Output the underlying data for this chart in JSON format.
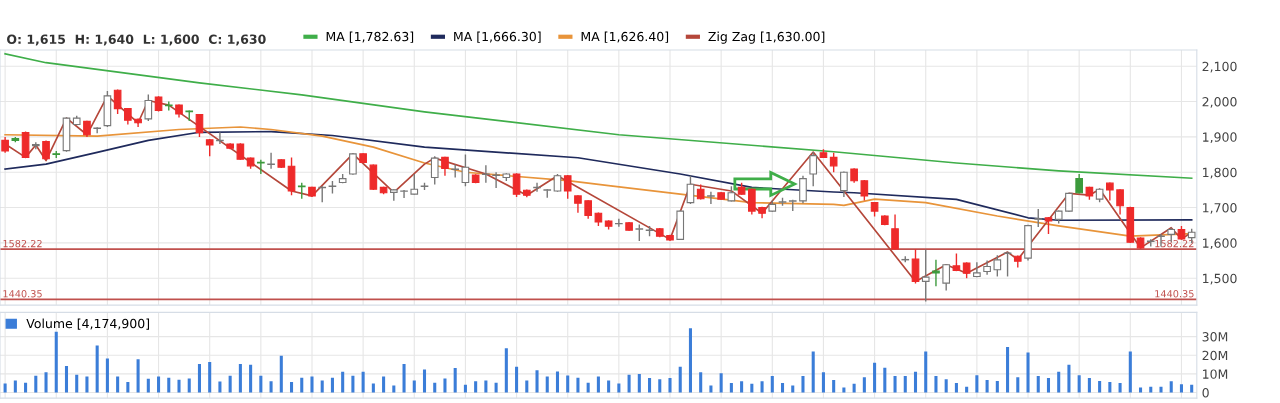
{
  "chart_data": [
    {
      "type": "candlestick",
      "categories": [
        null,
        null,
        null,
        null,
        null,
        null,
        null,
        null,
        null,
        null,
        null,
        null,
        null,
        null,
        null,
        null,
        null,
        null,
        null,
        null,
        null,
        null,
        null,
        null,
        null,
        null,
        null,
        null,
        null,
        null,
        null,
        null,
        null,
        null,
        null,
        null,
        null,
        null,
        null,
        null,
        null,
        null,
        null,
        null,
        null,
        null,
        null,
        null,
        null,
        null,
        null,
        null,
        null,
        null,
        null,
        null,
        null,
        null,
        null,
        null,
        null,
        null,
        null,
        null,
        null,
        null,
        null,
        null,
        null,
        null,
        null,
        null,
        null,
        null,
        null,
        null,
        null,
        null,
        null,
        null,
        null,
        null,
        null,
        null,
        null,
        null,
        null,
        null,
        null,
        null,
        null,
        null,
        null,
        null,
        null,
        null,
        null,
        null,
        null,
        null,
        null,
        null,
        null,
        null,
        null,
        null,
        null,
        null,
        null,
        null,
        null,
        null,
        null,
        null,
        null,
        null,
        null
      ],
      "ohlc": [
        [
          1890,
          1900,
          1855,
          1860
        ],
        [
          1890,
          1900,
          1885,
          1895
        ],
        [
          1912,
          1915,
          1840,
          1842
        ],
        [
          1875,
          1885,
          1865,
          1878
        ],
        [
          1887,
          1890,
          1835,
          1838
        ],
        [
          1850,
          1860,
          1840,
          1852
        ],
        [
          1861,
          1955,
          1858,
          1953
        ],
        [
          1935,
          1960,
          1933,
          1953
        ],
        [
          1944,
          1946,
          1900,
          1906
        ],
        [
          1924,
          1927,
          1910,
          1925
        ],
        [
          1932,
          2030,
          1928,
          2016
        ],
        [
          2032,
          2034,
          1965,
          1980
        ],
        [
          1980,
          1982,
          1935,
          1947
        ],
        [
          1950,
          1952,
          1928,
          1940
        ],
        [
          1951,
          2020,
          1945,
          2003
        ],
        [
          2013,
          2015,
          1972,
          1975
        ],
        [
          1988,
          2000,
          1975,
          1990
        ],
        [
          1990,
          1992,
          1955,
          1965
        ],
        [
          1971,
          1975,
          1945,
          1973
        ],
        [
          1963,
          1965,
          1900,
          1912
        ],
        [
          1892,
          1894,
          1845,
          1877
        ],
        [
          1889,
          1913,
          1880,
          1890
        ],
        [
          1880,
          1882,
          1865,
          1868
        ],
        [
          1880,
          1882,
          1835,
          1837
        ],
        [
          1840,
          1842,
          1810,
          1818
        ],
        [
          1826,
          1835,
          1795,
          1828
        ],
        [
          1822,
          1855,
          1810,
          1823
        ],
        [
          1835,
          1837,
          1812,
          1814
        ],
        [
          1817,
          1842,
          1735,
          1747
        ],
        [
          1759,
          1770,
          1725,
          1761
        ],
        [
          1757,
          1759,
          1730,
          1733
        ],
        [
          1756,
          1760,
          1715,
          1757
        ],
        [
          1760,
          1775,
          1740,
          1761
        ],
        [
          1771,
          1795,
          1769,
          1782
        ],
        [
          1795,
          1854,
          1793,
          1852
        ],
        [
          1852,
          1854,
          1826,
          1828
        ],
        [
          1820,
          1822,
          1750,
          1752
        ],
        [
          1757,
          1759,
          1738,
          1742
        ],
        [
          1743,
          1752,
          1719,
          1750
        ],
        [
          1746,
          1750,
          1727,
          1747
        ],
        [
          1738,
          1795,
          1736,
          1752
        ],
        [
          1760,
          1770,
          1750,
          1761
        ],
        [
          1785,
          1845,
          1765,
          1840
        ],
        [
          1842,
          1844,
          1790,
          1811
        ],
        [
          1808,
          1822,
          1785,
          1809
        ],
        [
          1771,
          1850,
          1760,
          1814
        ],
        [
          1792,
          1794,
          1769,
          1771
        ],
        [
          1794,
          1820,
          1770,
          1795
        ],
        [
          1791,
          1800,
          1755,
          1792
        ],
        [
          1785,
          1797,
          1775,
          1795
        ],
        [
          1795,
          1797,
          1730,
          1738
        ],
        [
          1749,
          1751,
          1729,
          1735
        ],
        [
          1756,
          1770,
          1745,
          1757
        ],
        [
          1749,
          1752,
          1728,
          1750
        ],
        [
          1747,
          1795,
          1745,
          1790
        ],
        [
          1790,
          1792,
          1725,
          1747
        ],
        [
          1733,
          1735,
          1685,
          1712
        ],
        [
          1719,
          1721,
          1668,
          1678
        ],
        [
          1684,
          1686,
          1648,
          1659
        ],
        [
          1662,
          1664,
          1638,
          1647
        ],
        [
          1654,
          1668,
          1646,
          1655
        ],
        [
          1657,
          1659,
          1634,
          1636
        ],
        [
          1639,
          1652,
          1605,
          1640
        ],
        [
          1635,
          1648,
          1619,
          1636
        ],
        [
          1640,
          1642,
          1616,
          1619
        ],
        [
          1621,
          1623,
          1605,
          1608
        ],
        [
          1610,
          1692,
          1608,
          1690
        ],
        [
          1714,
          1790,
          1710,
          1766
        ],
        [
          1752,
          1765,
          1723,
          1725
        ],
        [
          1732,
          1745,
          1710,
          1733
        ],
        [
          1742,
          1744,
          1722,
          1724
        ],
        [
          1719,
          1760,
          1717,
          1742
        ],
        [
          1757,
          1770,
          1736,
          1738
        ],
        [
          1752,
          1754,
          1680,
          1690
        ],
        [
          1700,
          1702,
          1670,
          1684
        ],
        [
          1690,
          1720,
          1688,
          1709
        ],
        [
          1715,
          1728,
          1705,
          1716
        ],
        [
          1718,
          1722,
          1690,
          1719
        ],
        [
          1719,
          1790,
          1712,
          1782
        ],
        [
          1795,
          1857,
          1760,
          1847
        ],
        [
          1855,
          1865,
          1840,
          1842
        ],
        [
          1842,
          1855,
          1800,
          1818
        ],
        [
          1748,
          1802,
          1730,
          1800
        ],
        [
          1809,
          1811,
          1770,
          1776
        ],
        [
          1776,
          1778,
          1720,
          1733
        ],
        [
          1714,
          1716,
          1675,
          1690
        ],
        [
          1676,
          1678,
          1650,
          1652
        ],
        [
          1640,
          1680,
          1581,
          1583
        ],
        [
          1552,
          1562,
          1545,
          1553
        ],
        [
          1554,
          1582,
          1485,
          1491
        ],
        [
          1491,
          1581,
          1434,
          1503
        ],
        [
          1515,
          1552,
          1477,
          1520
        ],
        [
          1486,
          1540,
          1465,
          1538
        ],
        [
          1535,
          1570,
          1520,
          1522
        ],
        [
          1543,
          1545,
          1500,
          1514
        ],
        [
          1505,
          1545,
          1503,
          1515
        ],
        [
          1519,
          1550,
          1510,
          1533
        ],
        [
          1524,
          1565,
          1505,
          1552
        ],
        [
          1570,
          1575,
          1505,
          1571
        ],
        [
          1562,
          1564,
          1530,
          1548
        ],
        [
          1557,
          1651,
          1550,
          1649
        ],
        [
          1667,
          1696,
          1645,
          1668
        ],
        [
          1671,
          1673,
          1625,
          1662
        ],
        [
          1667,
          1692,
          1655,
          1690
        ],
        [
          1690,
          1742,
          1688,
          1740
        ],
        [
          1742,
          1795,
          1740,
          1782
        ],
        [
          1757,
          1759,
          1722,
          1733
        ],
        [
          1724,
          1754,
          1715,
          1752
        ],
        [
          1769,
          1771,
          1720,
          1750
        ],
        [
          1750,
          1752,
          1680,
          1705
        ],
        [
          1700,
          1702,
          1600,
          1602
        ],
        [
          1614,
          1616,
          1584,
          1586
        ],
        [
          1604,
          1610,
          1590,
          1605
        ],
        [
          1618,
          1625,
          1590,
          1619
        ],
        [
          1624,
          1643,
          1603,
          1638
        ],
        [
          1638,
          1648,
          1610,
          1611
        ],
        [
          1615,
          1640,
          1600,
          1630
        ]
      ],
      "colors": [
        "#ee2a2a",
        "#3c9a3c",
        "#ee2a2a",
        "#ffffff",
        "#ee2a2a",
        "#3c9a3c",
        "#ffffff",
        "#ffffff",
        "#ee2a2a",
        "#ffffff",
        "#ffffff",
        "#ee2a2a",
        "#ee2a2a",
        "#ee2a2a",
        "#ffffff",
        "#ee2a2a",
        "#3c9a3c",
        "#ee2a2a",
        "#3c9a3c",
        "#ee2a2a",
        "#ee2a2a",
        "#ffffff",
        "#ee2a2a",
        "#ee2a2a",
        "#ee2a2a",
        "#3c9a3c",
        "#ffffff",
        "#ee2a2a",
        "#ee2a2a",
        "#3c9a3c",
        "#ee2a2a",
        "#ffffff",
        "#ffffff",
        "#ffffff",
        "#ffffff",
        "#ee2a2a",
        "#ee2a2a",
        "#ee2a2a",
        "#ffffff",
        "#ffffff",
        "#ffffff",
        "#ffffff",
        "#ffffff",
        "#ee2a2a",
        "#ffffff",
        "#ffffff",
        "#ee2a2a",
        "#ffffff",
        "#ffffff",
        "#ffffff",
        "#ee2a2a",
        "#ee2a2a",
        "#ffffff",
        "#ffffff",
        "#ffffff",
        "#ee2a2a",
        "#ee2a2a",
        "#ee2a2a",
        "#ee2a2a",
        "#ee2a2a",
        "#ffffff",
        "#ee2a2a",
        "#ffffff",
        "#ffffff",
        "#ee2a2a",
        "#ee2a2a",
        "#ffffff",
        "#ffffff",
        "#ee2a2a",
        "#ffffff",
        "#ee2a2a",
        "#ffffff",
        "#ee2a2a",
        "#ee2a2a",
        "#ee2a2a",
        "#ffffff",
        "#ffffff",
        "#ffffff",
        "#ffffff",
        "#ffffff",
        "#ee2a2a",
        "#ee2a2a",
        "#ffffff",
        "#ee2a2a",
        "#ee2a2a",
        "#ee2a2a",
        "#ee2a2a",
        "#ee2a2a",
        "#ffffff",
        "#ee2a2a",
        "#ffffff",
        "#3c9a3c",
        "#ffffff",
        "#ee2a2a",
        "#ee2a2a",
        "#ffffff",
        "#ffffff",
        "#ffffff",
        "#ffffff",
        "#ee2a2a",
        "#ffffff",
        "#ffffff",
        "#ee2a2a",
        "#ffffff",
        "#ffffff",
        "#3c9a3c",
        "#ee2a2a",
        "#ffffff",
        "#ee2a2a",
        "#ee2a2a",
        "#ee2a2a",
        "#ee2a2a",
        "#ffffff",
        "#ffffff",
        "#ffffff",
        "#ee2a2a",
        "#ffffff"
      ],
      "series": [
        {
          "name": "MA [1,782.63]",
          "type": "line",
          "color": "#3fae49",
          "values": [
            2135,
            null,
            null,
            null,
            2110,
            null,
            null,
            null,
            null,
            null,
            null,
            null,
            null,
            null,
            null,
            null,
            null,
            null,
            null,
            2053,
            null,
            null,
            null,
            null,
            null,
            null,
            null,
            null,
            null,
            2019,
            null,
            null,
            null,
            null,
            null,
            null,
            null,
            null,
            null,
            null,
            null,
            1971,
            null,
            null,
            null,
            null,
            null,
            null,
            null,
            null,
            null,
            null,
            null,
            null,
            null,
            null,
            null,
            null,
            null,
            null,
            1906,
            null,
            null,
            null,
            null,
            null,
            null,
            null,
            null,
            null,
            null,
            null,
            null,
            null,
            null,
            null,
            null,
            null,
            null,
            null,
            null,
            1858,
            null,
            null,
            null,
            null,
            null,
            null,
            null,
            null,
            null,
            null,
            null,
            1826,
            null,
            null,
            null,
            null,
            null,
            null,
            null,
            null,
            null,
            1804,
            null,
            null,
            null,
            null,
            null,
            null,
            null,
            null,
            null,
            null,
            null,
            null,
            1783
          ]
        },
        {
          "name": "MA [1,666.30]",
          "type": "line",
          "color": "#1f2a5c",
          "values": [
            1809,
            null,
            null,
            null,
            1823,
            null,
            null,
            null,
            null,
            1856,
            null,
            null,
            null,
            null,
            1890,
            null,
            null,
            null,
            null,
            1913,
            null,
            null,
            null,
            null,
            null,
            null,
            1915,
            null,
            null,
            null,
            null,
            null,
            1904,
            null,
            null,
            null,
            null,
            null,
            null,
            null,
            null,
            1871,
            null,
            null,
            null,
            null,
            null,
            null,
            null,
            null,
            null,
            null,
            null,
            null,
            null,
            null,
            1841,
            null,
            null,
            null,
            null,
            null,
            null,
            null,
            null,
            null,
            1795,
            null,
            null,
            null,
            null,
            null,
            null,
            1757,
            null,
            null,
            null,
            null,
            null,
            null,
            null,
            1744,
            null,
            1742,
            null,
            null,
            null,
            null,
            null,
            null,
            null,
            null,
            null,
            1723,
            null,
            null,
            null,
            null,
            null,
            null,
            1671,
            null,
            null,
            1664,
            null,
            null,
            null,
            null,
            null,
            null,
            null,
            null,
            null,
            null,
            null,
            null,
            1665
          ]
        },
        {
          "name": "MA [1,626.40]",
          "type": "line",
          "color": "#e8943a",
          "values": [
            1906,
            null,
            null,
            null,
            null,
            null,
            null,
            null,
            null,
            1902,
            null,
            null,
            null,
            null,
            null,
            null,
            null,
            1921,
            null,
            null,
            null,
            null,
            null,
            1928,
            null,
            null,
            1921,
            null,
            null,
            null,
            null,
            1902,
            null,
            null,
            null,
            null,
            1871,
            null,
            null,
            null,
            null,
            1826,
            null,
            null,
            null,
            1800,
            null,
            null,
            null,
            null,
            null,
            null,
            null,
            null,
            null,
            1776,
            null,
            null,
            null,
            1762,
            null,
            null,
            null,
            null,
            null,
            null,
            1738,
            null,
            null,
            null,
            null,
            null,
            null,
            1714,
            null,
            null,
            null,
            null,
            null,
            null,
            null,
            1709,
            1706,
            null,
            null,
            1724,
            null,
            null,
            null,
            null,
            1714,
            null,
            null,
            null,
            null,
            null,
            null,
            1676,
            null,
            null,
            null,
            null,
            null,
            1648,
            null,
            null,
            null,
            null,
            null,
            null,
            1619,
            null,
            null,
            null,
            null,
            null,
            1626
          ]
        },
        {
          "name": "Zig Zag [1,630.00]",
          "type": "line",
          "color": "#b5473a",
          "values": [
            1880,
            null,
            1842,
            1877,
            1833,
            null,
            1953,
            null,
            1906,
            null,
            2016,
            null,
            null,
            1940,
            2003,
            null,
            1990,
            null,
            null,
            null,
            null,
            null,
            null,
            null,
            null,
            null,
            null,
            null,
            1747,
            null,
            1733,
            null,
            null,
            null,
            1852,
            null,
            null,
            null,
            1743,
            null,
            null,
            1823,
            1840,
            null,
            null,
            null,
            null,
            1795,
            null,
            null,
            null,
            1735,
            null,
            null,
            1790,
            null,
            null,
            null,
            null,
            null,
            null,
            null,
            null,
            null,
            null,
            1610,
            null,
            1766,
            null,
            null,
            null,
            1747,
            null,
            null,
            1684,
            null,
            null,
            null,
            null,
            1857,
            null,
            null,
            null,
            null,
            null,
            null,
            null,
            null,
            null,
            1491,
            null,
            null,
            1538,
            null,
            1514,
            null,
            null,
            null,
            1574,
            1553,
            null,
            null,
            null,
            null,
            1740,
            null,
            1735,
            1752,
            null,
            null,
            null,
            1586,
            null,
            null,
            1643,
            1611,
            1630
          ]
        }
      ],
      "ylim": [
        1424,
        2146
      ],
      "yticks": [
        {
          "value": 1500,
          "label": "1,500"
        },
        {
          "value": 1600,
          "label": "1,600"
        },
        {
          "value": 1700,
          "label": "1,700"
        },
        {
          "value": 1800,
          "label": "1,800"
        },
        {
          "value": 1900,
          "label": "1,900"
        },
        {
          "value": 2000,
          "label": "2,000"
        },
        {
          "value": 2100,
          "label": "2,100"
        }
      ],
      "ref_lines": [
        {
          "axis": "y",
          "value": 1582.22,
          "label": "1582.22",
          "color": "#c0504d"
        },
        {
          "axis": "y",
          "value": 1440.35,
          "label": "1440.35",
          "color": "#c0504d"
        }
      ],
      "annotations": [
        "O: 1,615  H: 1,640  L: 1,600  C: 1,630"
      ],
      "grid": true,
      "legend": "top left",
      "tick_labels": "y"
    },
    {
      "type": "bar",
      "categories": [
        null,
        null,
        null,
        null,
        null,
        null,
        null,
        null,
        null,
        null,
        null,
        null,
        null,
        null,
        null,
        null,
        null,
        null,
        null,
        null,
        null,
        null,
        null,
        null,
        null,
        null,
        null,
        null,
        null,
        null,
        null,
        null,
        null,
        null,
        null,
        null,
        null,
        null,
        null,
        null,
        null,
        null,
        null,
        null,
        null,
        null,
        null,
        null,
        null,
        null,
        null,
        null,
        null,
        null,
        null,
        null,
        null,
        null,
        null,
        null,
        null,
        null,
        null,
        null,
        null,
        null,
        null,
        null,
        null,
        null,
        null,
        null,
        null,
        null,
        null,
        null,
        null,
        null,
        null,
        null,
        null,
        null,
        null,
        null,
        null,
        null,
        null,
        null,
        null,
        null,
        null,
        null,
        null,
        null,
        null,
        null,
        null,
        null,
        null,
        null,
        null,
        null,
        null,
        null,
        null,
        null,
        null,
        null,
        null,
        null,
        null,
        null,
        null,
        null,
        null,
        null,
        null
      ],
      "series": [
        {
          "name": "Volume [4,174,900]",
          "color": "#3b7dd8",
          "values": [
            4.8,
            6.5,
            5.3,
            9.0,
            10.9,
            32.6,
            14.3,
            9.5,
            8.6,
            25.2,
            18.3,
            8.6,
            5.7,
            17.9,
            7.4,
            8.6,
            8.0,
            6.9,
            7.6,
            15.3,
            16.4,
            5.9,
            9.0,
            15.3,
            14.9,
            9.0,
            6.1,
            19.7,
            5.7,
            8.0,
            8.6,
            6.5,
            8.0,
            11.1,
            9.0,
            11.1,
            4.8,
            8.6,
            3.8,
            15.3,
            6.5,
            12.4,
            5.3,
            7.6,
            13.2,
            4.2,
            6.1,
            6.5,
            5.3,
            23.7,
            13.9,
            6.5,
            12.0,
            8.6,
            11.3,
            9.2,
            8.0,
            5.3,
            8.6,
            6.5,
            4.8,
            9.5,
            10.0,
            7.8,
            7.1,
            7.8,
            13.8,
            34.4,
            10.9,
            3.8,
            10.4,
            5.1,
            6.0,
            4.7,
            6.0,
            8.9,
            5.1,
            3.8,
            8.9,
            22.0,
            10.9,
            6.7,
            2.7,
            4.7,
            8.2,
            16.0,
            13.3,
            8.9,
            8.9,
            11.1,
            22.0,
            8.9,
            7.1,
            5.1,
            3.1,
            9.3,
            6.7,
            6.2,
            24.4,
            8.2,
            21.5,
            8.9,
            7.8,
            11.1,
            14.9,
            9.3,
            7.8,
            6.2,
            5.6,
            5.1,
            22.0,
            2.7,
            3.1,
            3.1,
            6.0,
            4.4,
            4.2
          ]
        }
      ],
      "ylim": [
        -3,
        43
      ],
      "yticks": [
        0,
        {
          "value": 10,
          "label": "10M"
        },
        {
          "value": 20,
          "label": "20M"
        },
        {
          "value": 30,
          "label": "30M"
        }
      ],
      "grid": true,
      "legend": "top left",
      "tick_labels": "y"
    }
  ]
}
